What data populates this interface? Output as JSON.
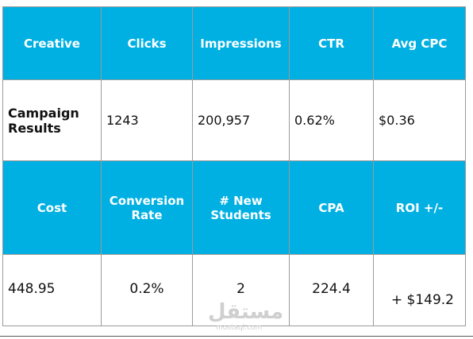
{
  "table": {
    "rows": [
      [
        "Creative",
        "Clicks",
        "Impressions",
        "CTR",
        "Avg CPC"
      ],
      [
        "Campaign Results",
        "1243",
        "200,957",
        "0.62%",
        "$0.36"
      ],
      [
        "Cost",
        "Conversion Rate",
        "# New Students",
        "CPA",
        "ROI +/-"
      ],
      [
        "448.95",
        "0.2%",
        "2",
        "224.4",
        "+ $149.2"
      ]
    ]
  },
  "watermark": {
    "title": "مستقل",
    "url": "mostaql.com"
  }
}
